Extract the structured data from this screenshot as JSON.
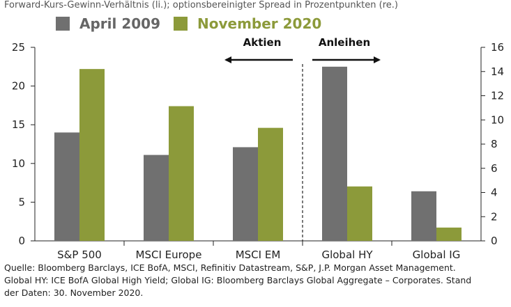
{
  "subtitle": "Forward-Kurs-Gewinn-Verhältnis (li.); optionsbereinigter Spread in Prozentpunkten (re.)",
  "colors": {
    "april": "#707070",
    "november": "#8c9a3a",
    "axis": "#222222"
  },
  "chart_data": {
    "type": "bar",
    "categories": [
      "S&P 500",
      "MSCI Europe",
      "MSCI EM",
      "Global HY",
      "Global IG"
    ],
    "series": [
      {
        "name": "April 2009",
        "values": [
          14.0,
          11.1,
          12.1,
          null,
          null
        ],
        "axis": "left"
      },
      {
        "name": "November 2020",
        "values": [
          22.2,
          17.4,
          14.6,
          null,
          null
        ],
        "axis": "left"
      },
      {
        "name": "April 2009",
        "values": [
          null,
          null,
          null,
          14.4,
          4.1
        ],
        "axis": "right"
      },
      {
        "name": "November 2020",
        "values": [
          null,
          null,
          null,
          4.5,
          1.1
        ],
        "axis": "right"
      }
    ],
    "ylim_left": [
      0,
      25
    ],
    "yticks_left": [
      "0",
      "5",
      "10",
      "15",
      "20",
      "25"
    ],
    "ylim_right": [
      0,
      16
    ],
    "yticks_right": [
      "0",
      "2",
      "4",
      "6",
      "8",
      "10",
      "12",
      "14",
      "16"
    ],
    "annotations": {
      "left_arrow": "Aktien",
      "right_arrow": "Anleihen"
    },
    "legend": [
      "April 2009",
      "November 2020"
    ]
  },
  "source": {
    "line1": "Quelle: Bloomberg Barclays, ICE BofA, MSCI, Refinitiv Datastream, S&P, J.P. Morgan Asset Management.",
    "line2": "Global HY: ICE BofA Global High Yield; Global IG: Bloomberg Barclays Global Aggregate – Corporates. Stand",
    "line3": "der Daten: 30. November 2020."
  }
}
